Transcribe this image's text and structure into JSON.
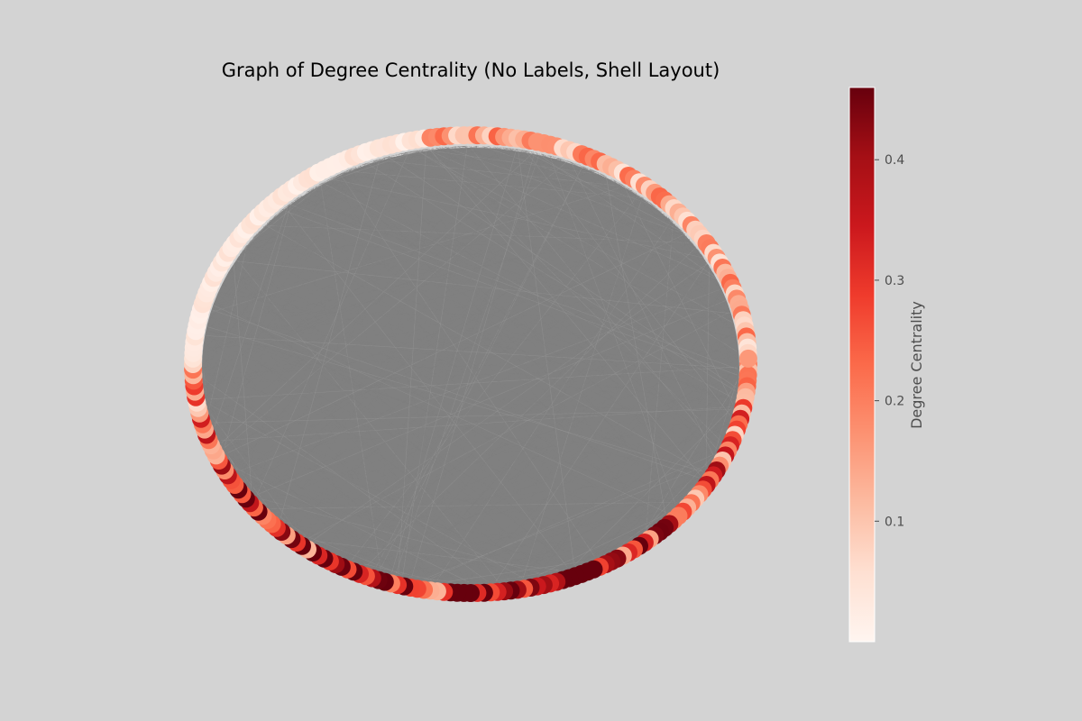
{
  "chart_data": {
    "type": "network-graph",
    "title": "Graph of Degree Centrality (No Labels, Shell Layout)",
    "layout": "shell",
    "node_labels_shown": false,
    "edge_color": "#808080",
    "node_colormap": "Reds",
    "colormap_stops": [
      "#fff5f0",
      "#fee0d2",
      "#fcbba1",
      "#fc9272",
      "#fb6a4a",
      "#ef3b2c",
      "#cb181d",
      "#a50f15",
      "#67000d"
    ],
    "colorbar": {
      "label": "Degree Centrality",
      "range": [
        0.0,
        0.46
      ],
      "ticks": [
        0.1,
        0.2,
        0.3,
        0.4
      ],
      "tick_labels": [
        "0.1",
        "0.2",
        "0.3",
        "0.4"
      ]
    }
  }
}
